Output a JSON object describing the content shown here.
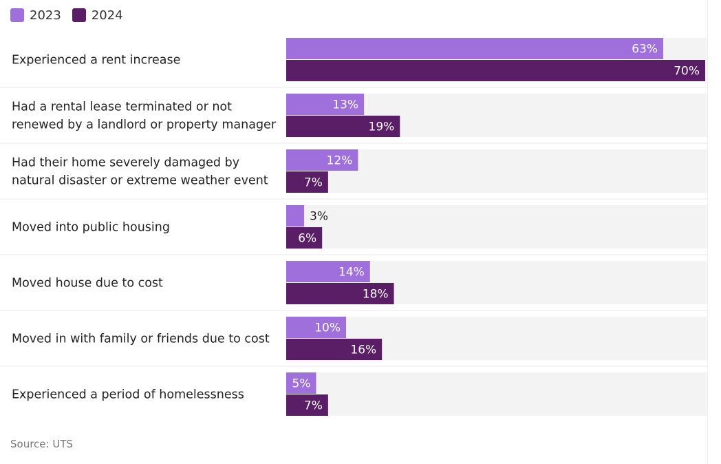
{
  "chart_data": {
    "type": "bar",
    "orientation": "horizontal",
    "xlim": [
      0,
      100
    ],
    "categories": [
      [
        "Experienced a rent increase"
      ],
      [
        "Had a rental lease terminated or not",
        "renewed by a landlord or property manager"
      ],
      [
        "Had their home severely damaged by",
        "natural disaster or extreme weather event"
      ],
      [
        "Moved into public housing"
      ],
      [
        "Moved house due to cost"
      ],
      [
        "Moved in with family or friends due to cost"
      ],
      [
        "Experienced a period of homelessness"
      ]
    ],
    "series": [
      {
        "name": "2023",
        "color": "#9f6fdb",
        "values": [
          63,
          13,
          12,
          3,
          14,
          10,
          5
        ],
        "labels": [
          "63%",
          "13%",
          "12%",
          "3%",
          "14%",
          "10%",
          "5%"
        ]
      },
      {
        "name": "2024",
        "color": "#5a1e66",
        "values": [
          70,
          19,
          7,
          6,
          18,
          16,
          7
        ],
        "labels": [
          "70%",
          "19%",
          "7%",
          "6%",
          "18%",
          "16%",
          "7%"
        ]
      }
    ],
    "track_color": "#f3f3f3",
    "source": "Source: UTS"
  }
}
